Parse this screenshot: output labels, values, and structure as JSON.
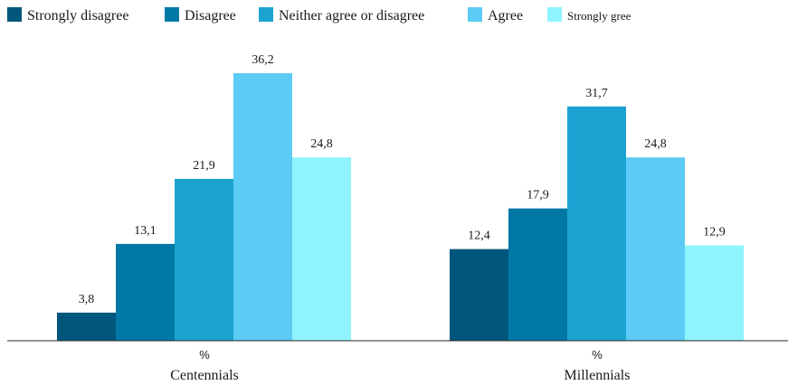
{
  "chart_data": {
    "type": "bar",
    "categories": [
      "Centennials",
      "Millennials"
    ],
    "unit": "%",
    "series": [
      {
        "name": "Strongly disagree",
        "color": "#00567c",
        "values": [
          3.8,
          12.4
        ],
        "labels": [
          "3,8",
          "12,4"
        ]
      },
      {
        "name": "Disagree",
        "color": "#0078a6",
        "values": [
          13.1,
          17.9
        ],
        "labels": [
          "13,1",
          "17,9"
        ]
      },
      {
        "name": "Neither agree or disagree",
        "color": "#1ca3d2",
        "values": [
          21.9,
          31.7
        ],
        "labels": [
          "21,9",
          "31,7"
        ]
      },
      {
        "name": "Agree",
        "color": "#5ccbf5",
        "values": [
          36.2,
          24.8
        ],
        "labels": [
          "36,2",
          "24,8"
        ]
      },
      {
        "name": "Strongly gree",
        "color": "#8ff4ff",
        "values": [
          24.8,
          12.9
        ],
        "labels": [
          "24,8",
          "12,9"
        ]
      }
    ],
    "ylim": [
      0,
      40
    ],
    "legend": "top",
    "grid": false
  }
}
